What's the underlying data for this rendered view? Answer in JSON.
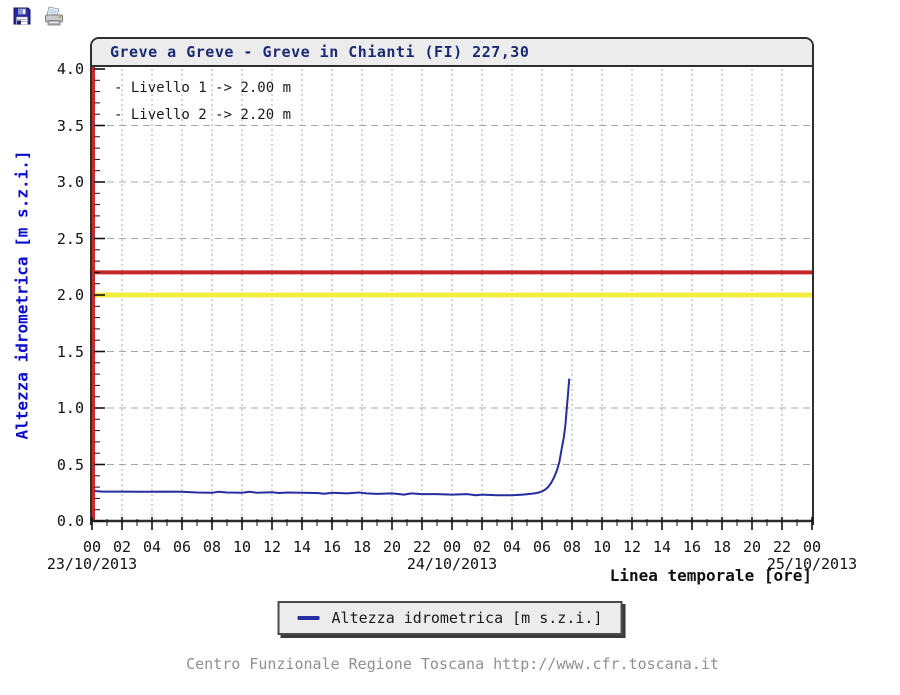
{
  "toolbar": {
    "save_label": "save",
    "print_label": "print"
  },
  "chart": {
    "title": "Greve a Greve - Greve in Chianti (FI) 227,30"
  },
  "chart_data": {
    "type": "line",
    "title": "Greve a Greve - Greve in Chianti (FI) 227,30",
    "xlabel": "Linea temporale [ore]",
    "ylabel": "Altezza idrometrica [m s.z.i.]",
    "ylim": [
      0.0,
      4.0
    ],
    "xlim_hours": [
      0,
      48
    ],
    "grid": true,
    "x_minor_step_hours": 1,
    "y_minor_step": 0.1,
    "y_tick_values": [
      0.0,
      0.5,
      1.0,
      1.5,
      2.0,
      2.5,
      3.0,
      3.5,
      4.0
    ],
    "y_tick_labels": [
      "0.0",
      "0.5",
      "1.0",
      "1.5",
      "2.0",
      "2.5",
      "3.0",
      "3.5",
      "4.0"
    ],
    "x_tick_hours": [
      0,
      2,
      4,
      6,
      8,
      10,
      12,
      14,
      16,
      18,
      20,
      22,
      24,
      26,
      28,
      30,
      32,
      34,
      36,
      38,
      40,
      42,
      44,
      46,
      48
    ],
    "x_tick_labels": [
      "00",
      "02",
      "04",
      "06",
      "08",
      "10",
      "12",
      "14",
      "16",
      "18",
      "20",
      "22",
      "00",
      "02",
      "04",
      "06",
      "08",
      "10",
      "12",
      "14",
      "16",
      "18",
      "20",
      "22",
      "00"
    ],
    "x_dates": [
      {
        "label": "23/10/2013",
        "hour": 0
      },
      {
        "label": "24/10/2013",
        "hour": 24
      },
      {
        "label": "25/10/2013",
        "hour": 48
      }
    ],
    "thresholds": [
      {
        "name": "Livello 1",
        "label": "- Livello 1 -> 2.00 m",
        "value": 2.0,
        "color": "#f2ee40",
        "stroke_width": 5
      },
      {
        "name": "Livello 2",
        "label": "- Livello 2 -> 2.20 m",
        "value": 2.2,
        "color": "#c32626",
        "stroke_width": 4
      }
    ],
    "series": [
      {
        "name": "Altezza idrometrica [m s.z.i.]",
        "color": "#262da0",
        "points": [
          [
            0,
            0.27
          ],
          [
            0.3,
            0.265
          ],
          [
            0.7,
            0.26
          ],
          [
            1,
            0.26
          ],
          [
            2,
            0.26
          ],
          [
            3,
            0.258
          ],
          [
            4,
            0.258
          ],
          [
            5,
            0.26
          ],
          [
            6,
            0.258
          ],
          [
            7,
            0.252
          ],
          [
            8,
            0.25
          ],
          [
            8.4,
            0.258
          ],
          [
            9,
            0.252
          ],
          [
            10,
            0.25
          ],
          [
            10.5,
            0.258
          ],
          [
            11,
            0.25
          ],
          [
            12,
            0.255
          ],
          [
            12.5,
            0.248
          ],
          [
            13,
            0.252
          ],
          [
            14,
            0.25
          ],
          [
            15,
            0.248
          ],
          [
            15.5,
            0.242
          ],
          [
            16,
            0.25
          ],
          [
            17,
            0.244
          ],
          [
            17.8,
            0.252
          ],
          [
            18.3,
            0.244
          ],
          [
            19,
            0.24
          ],
          [
            20,
            0.244
          ],
          [
            20.8,
            0.234
          ],
          [
            21.3,
            0.244
          ],
          [
            22,
            0.238
          ],
          [
            23,
            0.238
          ],
          [
            24,
            0.234
          ],
          [
            25,
            0.238
          ],
          [
            25.6,
            0.228
          ],
          [
            26,
            0.234
          ],
          [
            27,
            0.228
          ],
          [
            28,
            0.228
          ],
          [
            28.6,
            0.233
          ],
          [
            29,
            0.236
          ],
          [
            29.5,
            0.244
          ],
          [
            29.8,
            0.252
          ],
          [
            30,
            0.262
          ],
          [
            30.2,
            0.276
          ],
          [
            30.4,
            0.3
          ],
          [
            30.6,
            0.335
          ],
          [
            30.8,
            0.385
          ],
          [
            31,
            0.45
          ],
          [
            31.15,
            0.52
          ],
          [
            31.3,
            0.63
          ],
          [
            31.45,
            0.74
          ],
          [
            31.55,
            0.84
          ],
          [
            31.65,
            1.0
          ],
          [
            31.72,
            1.1
          ],
          [
            31.78,
            1.2
          ],
          [
            31.82,
            1.26
          ]
        ]
      }
    ],
    "legend": {
      "position": "bottom",
      "label": "Altezza idrometrica [m s.z.i.]"
    },
    "colors": {
      "axis_border": "#2f2f2f",
      "y_axis_spine": "#cc2a2a",
      "grid": "#a8a8a8",
      "tick": "#111111",
      "title_navy": "#1b2a75",
      "axis_label_blue": "#0a0acd",
      "titlebar_bg": "#ececec",
      "footer_gray": "#8f8f8f"
    }
  },
  "footer": {
    "text": "Centro Funzionale Regione Toscana http://www.cfr.toscana.it"
  }
}
